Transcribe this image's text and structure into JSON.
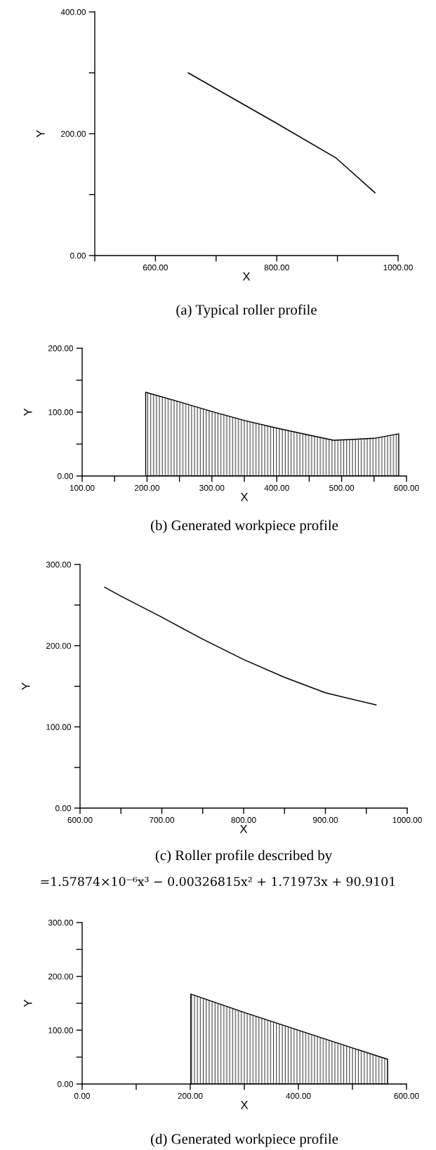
{
  "chart_data": [
    {
      "type": "line",
      "title": "(a) Typical roller profile",
      "xlabel": "X",
      "ylabel": "Y",
      "series": [
        {
          "color": "#000000",
          "x": [
            654,
            800,
            898,
            962
          ],
          "values": [
            300,
            217,
            160,
            103
          ]
        }
      ],
      "xlim": [
        500,
        1000
      ],
      "ylim": [
        0,
        400
      ],
      "xticks": [
        {
          "value": 500,
          "label": null
        },
        {
          "value": 600,
          "label": "600.00"
        },
        {
          "value": 700,
          "label": null
        },
        {
          "value": 800,
          "label": "800.00"
        },
        {
          "value": 900,
          "label": null
        },
        {
          "value": 1000,
          "label": "1000.00"
        }
      ],
      "yticks": [
        {
          "value": 0,
          "label": "0.00"
        },
        {
          "value": 100,
          "label": null
        },
        {
          "value": 200,
          "label": "200.00"
        },
        {
          "value": 300,
          "label": null
        },
        {
          "value": 400,
          "label": "400.00"
        }
      ]
    },
    {
      "type": "area",
      "title": "(b) Generated workpiece profile",
      "xlabel": "X",
      "ylabel": "Y",
      "series": [
        {
          "color": "#000000",
          "x": [
            198,
            250,
            300,
            350,
            400,
            450,
            487,
            490,
            550,
            588
          ],
          "values": [
            131,
            116,
            101,
            87,
            75,
            64,
            56,
            56,
            59,
            66
          ]
        }
      ],
      "xlim": [
        100,
        600
      ],
      "ylim": [
        0,
        200
      ],
      "xticks": [
        {
          "value": 100,
          "label": "100.00"
        },
        {
          "value": 150,
          "label": null
        },
        {
          "value": 200,
          "label": "200.00"
        },
        {
          "value": 250,
          "label": null
        },
        {
          "value": 300,
          "label": "300.00"
        },
        {
          "value": 350,
          "label": null
        },
        {
          "value": 400,
          "label": "400.00"
        },
        {
          "value": 450,
          "label": null
        },
        {
          "value": 500,
          "label": "500.00"
        },
        {
          "value": 550,
          "label": null
        },
        {
          "value": 600,
          "label": "600.00"
        }
      ],
      "yticks": [
        {
          "value": 0,
          "label": "0.00"
        },
        {
          "value": 50,
          "label": null
        },
        {
          "value": 100,
          "label": "100.00"
        },
        {
          "value": 150,
          "label": null
        },
        {
          "value": 200,
          "label": "200.00"
        }
      ]
    },
    {
      "type": "line",
      "title": "(c) Roller profile described by",
      "subtitle": "=1.57874×10⁻⁶x³ − 0.00326815x² + 1.71973x + 90.9101",
      "xlabel": "X",
      "ylabel": "Y",
      "series": [
        {
          "color": "#000000",
          "x": [
            630,
            650,
            700,
            750,
            800,
            850,
            900,
            962
          ],
          "values": [
            272,
            261,
            235,
            208,
            183,
            161,
            142,
            127
          ]
        }
      ],
      "xlim": [
        600,
        1000
      ],
      "ylim": [
        0,
        300
      ],
      "xticks": [
        {
          "value": 600,
          "label": "600.00"
        },
        {
          "value": 650,
          "label": null
        },
        {
          "value": 700,
          "label": "700.00"
        },
        {
          "value": 750,
          "label": null
        },
        {
          "value": 800,
          "label": "800.00"
        },
        {
          "value": 850,
          "label": null
        },
        {
          "value": 900,
          "label": "900.00"
        },
        {
          "value": 950,
          "label": null
        },
        {
          "value": 1000,
          "label": "1000.00"
        }
      ],
      "yticks": [
        {
          "value": 0,
          "label": "0.00"
        },
        {
          "value": 50,
          "label": null
        },
        {
          "value": 100,
          "label": "100.00"
        },
        {
          "value": 150,
          "label": null
        },
        {
          "value": 200,
          "label": "200.00"
        },
        {
          "value": 250,
          "label": null
        },
        {
          "value": 300,
          "label": "300.00"
        }
      ]
    },
    {
      "type": "area",
      "title": "(d) Generated workpiece profile",
      "xlabel": "X",
      "ylabel": "Y",
      "series": [
        {
          "color": "#000000",
          "x": [
            201,
            300,
            400,
            500,
            565
          ],
          "values": [
            167,
            133,
            100,
            67,
            46
          ]
        }
      ],
      "xlim": [
        0,
        600
      ],
      "ylim": [
        0,
        300
      ],
      "xticks": [
        {
          "value": 0,
          "label": "0.00"
        },
        {
          "value": 100,
          "label": null
        },
        {
          "value": 200,
          "label": "200.00"
        },
        {
          "value": 300,
          "label": null
        },
        {
          "value": 400,
          "label": "400.00"
        },
        {
          "value": 500,
          "label": null
        },
        {
          "value": 600,
          "label": "600.00"
        }
      ],
      "yticks": [
        {
          "value": 0,
          "label": "0.00"
        },
        {
          "value": 50,
          "label": null
        },
        {
          "value": 100,
          "label": "100.00"
        },
        {
          "value": 150,
          "label": null
        },
        {
          "value": 200,
          "label": "200.00"
        },
        {
          "value": 250,
          "label": null
        },
        {
          "value": 300,
          "label": "300.00"
        }
      ]
    }
  ]
}
